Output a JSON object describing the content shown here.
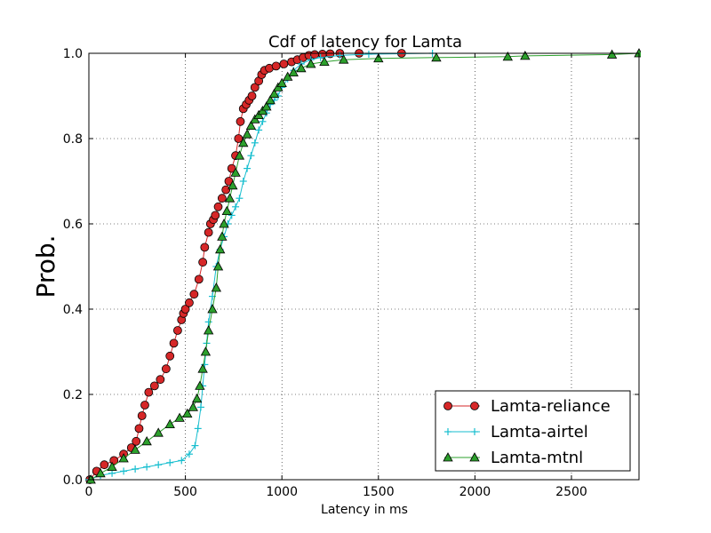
{
  "chart_data": {
    "type": "line",
    "title": "Cdf of latency for Lamta",
    "xlabel": "Latency in ms",
    "ylabel": "Prob.",
    "xlim": [
      0,
      2850
    ],
    "ylim": [
      0,
      1.0
    ],
    "xticks": [
      0,
      500,
      1000,
      1500,
      2000,
      2500
    ],
    "yticks": [
      0.0,
      0.2,
      0.4,
      0.6,
      0.8,
      1.0
    ],
    "xtick_labels": [
      "0",
      "500",
      "1000",
      "1500",
      "2000",
      "2500"
    ],
    "ytick_labels": [
      "0.0",
      "0.2",
      "0.4",
      "0.6",
      "0.8",
      "1.0"
    ],
    "grid": true,
    "legend_position": "lower-right",
    "series": [
      {
        "name": "Lamta-reliance",
        "color": "#d62728",
        "marker": "circle",
        "x": [
          5,
          40,
          80,
          130,
          180,
          220,
          245,
          260,
          275,
          290,
          310,
          340,
          370,
          400,
          420,
          440,
          460,
          480,
          490,
          500,
          520,
          545,
          570,
          590,
          600,
          620,
          630,
          645,
          655,
          670,
          690,
          710,
          725,
          740,
          760,
          775,
          785,
          800,
          815,
          830,
          845,
          860,
          880,
          895,
          910,
          935,
          970,
          1010,
          1050,
          1080,
          1110,
          1140,
          1170,
          1210,
          1250,
          1300,
          1400,
          1620
        ],
        "y": [
          0.0,
          0.02,
          0.035,
          0.045,
          0.06,
          0.075,
          0.09,
          0.12,
          0.15,
          0.175,
          0.205,
          0.22,
          0.235,
          0.26,
          0.29,
          0.32,
          0.35,
          0.375,
          0.39,
          0.4,
          0.415,
          0.435,
          0.47,
          0.51,
          0.545,
          0.58,
          0.6,
          0.61,
          0.62,
          0.64,
          0.66,
          0.68,
          0.7,
          0.73,
          0.76,
          0.8,
          0.84,
          0.87,
          0.88,
          0.89,
          0.9,
          0.92,
          0.935,
          0.95,
          0.96,
          0.965,
          0.97,
          0.975,
          0.98,
          0.985,
          0.99,
          0.995,
          0.997,
          0.998,
          0.999,
          1.0,
          1.0,
          1.0
        ]
      },
      {
        "name": "Lamta-airtel",
        "color": "#17becf",
        "marker": "plus",
        "x": [
          0,
          60,
          120,
          180,
          240,
          300,
          360,
          420,
          480,
          520,
          550,
          565,
          580,
          590,
          600,
          610,
          620,
          640,
          660,
          680,
          700,
          720,
          740,
          760,
          780,
          800,
          820,
          840,
          860,
          880,
          900,
          920,
          940,
          960,
          980,
          1000,
          1030,
          1060,
          1100,
          1150,
          1200,
          1300,
          1450,
          1780
        ],
        "y": [
          0.0,
          0.01,
          0.015,
          0.02,
          0.025,
          0.03,
          0.035,
          0.04,
          0.045,
          0.06,
          0.08,
          0.12,
          0.17,
          0.22,
          0.27,
          0.32,
          0.37,
          0.43,
          0.5,
          0.54,
          0.57,
          0.6,
          0.62,
          0.64,
          0.66,
          0.7,
          0.73,
          0.76,
          0.79,
          0.82,
          0.84,
          0.86,
          0.88,
          0.89,
          0.9,
          0.92,
          0.94,
          0.96,
          0.975,
          0.985,
          0.99,
          0.995,
          0.998,
          1.0
        ]
      },
      {
        "name": "Lamta-mtnl",
        "color": "#2ca02c",
        "marker": "triangle",
        "x": [
          10,
          60,
          120,
          180,
          240,
          300,
          360,
          420,
          470,
          510,
          540,
          560,
          575,
          590,
          605,
          620,
          640,
          660,
          670,
          680,
          690,
          700,
          715,
          730,
          745,
          760,
          780,
          800,
          820,
          840,
          860,
          880,
          900,
          920,
          940,
          960,
          980,
          1000,
          1030,
          1060,
          1100,
          1150,
          1220,
          1320,
          1500,
          1800,
          2170,
          2260,
          2710,
          2850
        ],
        "y": [
          0.0,
          0.015,
          0.03,
          0.05,
          0.07,
          0.09,
          0.11,
          0.13,
          0.145,
          0.155,
          0.17,
          0.19,
          0.22,
          0.26,
          0.3,
          0.35,
          0.4,
          0.45,
          0.5,
          0.54,
          0.57,
          0.6,
          0.63,
          0.66,
          0.69,
          0.72,
          0.76,
          0.79,
          0.81,
          0.83,
          0.845,
          0.855,
          0.865,
          0.875,
          0.89,
          0.905,
          0.92,
          0.93,
          0.945,
          0.955,
          0.965,
          0.975,
          0.98,
          0.985,
          0.988,
          0.99,
          0.992,
          0.994,
          0.997,
          1.0
        ]
      }
    ]
  }
}
